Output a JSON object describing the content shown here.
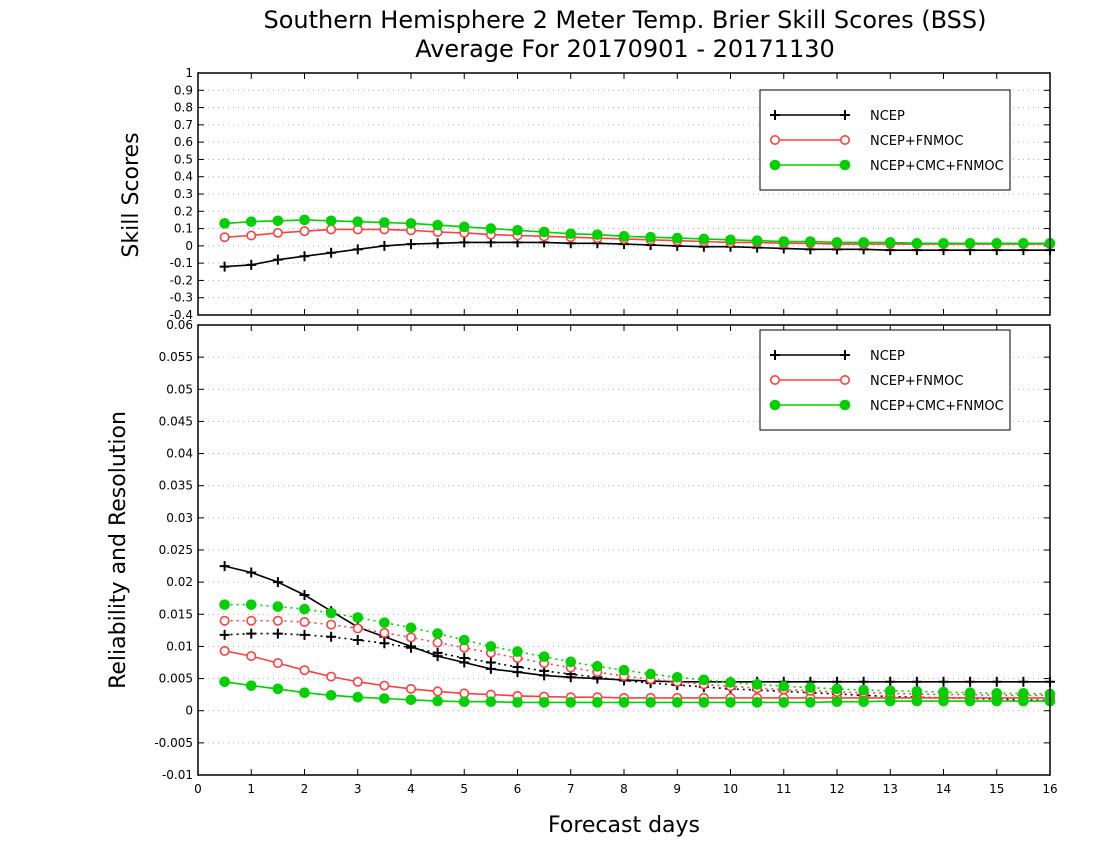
{
  "title": {
    "line1": "Southern Hemisphere 2 Meter Temp. Brier Skill Scores (BSS)",
    "line2": "Average For 20170901 - 20171130"
  },
  "chart_data": [
    {
      "type": "line",
      "panel": "top",
      "ylabel": "Skill Scores",
      "xlabel": "",
      "xlim": [
        0,
        16
      ],
      "ylim": [
        -0.4,
        1
      ],
      "yticks": [
        -0.4,
        -0.3,
        -0.2,
        -0.1,
        0,
        0.1,
        0.2,
        0.3,
        0.4,
        0.5,
        0.6,
        0.7,
        0.8,
        0.9,
        1
      ],
      "ytick_labels": [
        "-0.4",
        "-0.3",
        "-0.2",
        "-0.1",
        "0",
        "0.1",
        "0.2",
        "0.3",
        "0.4",
        "0.5",
        "0.6",
        "0.7",
        "0.8",
        "0.9",
        "1"
      ],
      "grid": true,
      "legend_position": "top-right",
      "x": [
        0.5,
        1,
        1.5,
        2,
        2.5,
        3,
        3.5,
        4,
        4.5,
        5,
        5.5,
        6,
        6.5,
        7,
        7.5,
        8,
        8.5,
        9,
        9.5,
        10,
        10.5,
        11,
        11.5,
        12,
        12.5,
        13,
        13.5,
        14,
        14.5,
        15,
        15.5,
        16
      ],
      "series": [
        {
          "name": "NCEP",
          "color": "#000000",
          "marker": "plus",
          "line": "solid",
          "values": [
            -0.12,
            -0.11,
            -0.08,
            -0.06,
            -0.04,
            -0.02,
            0.0,
            0.01,
            0.015,
            0.02,
            0.02,
            0.02,
            0.02,
            0.015,
            0.015,
            0.01,
            0.005,
            0.0,
            -0.005,
            -0.005,
            -0.01,
            -0.015,
            -0.02,
            -0.02,
            -0.02,
            -0.025,
            -0.025,
            -0.025,
            -0.025,
            -0.025,
            -0.025,
            -0.025
          ]
        },
        {
          "name": "NCEP+FNMOC",
          "color": "#ff4040",
          "marker": "open-circle",
          "line": "solid",
          "values": [
            0.05,
            0.06,
            0.075,
            0.085,
            0.095,
            0.095,
            0.095,
            0.09,
            0.08,
            0.075,
            0.065,
            0.06,
            0.055,
            0.05,
            0.045,
            0.04,
            0.035,
            0.03,
            0.025,
            0.02,
            0.02,
            0.015,
            0.015,
            0.01,
            0.01,
            0.01,
            0.01,
            0.01,
            0.01,
            0.01,
            0.01,
            0.01
          ]
        },
        {
          "name": "NCEP+CMC+FNMOC",
          "color": "#00d000",
          "marker": "filled-circle",
          "line": "solid",
          "values": [
            0.13,
            0.14,
            0.145,
            0.15,
            0.145,
            0.14,
            0.135,
            0.13,
            0.12,
            0.11,
            0.1,
            0.09,
            0.08,
            0.07,
            0.065,
            0.055,
            0.05,
            0.045,
            0.04,
            0.035,
            0.03,
            0.025,
            0.025,
            0.02,
            0.02,
            0.02,
            0.015,
            0.015,
            0.015,
            0.015,
            0.015,
            0.015
          ]
        }
      ]
    },
    {
      "type": "line",
      "panel": "bottom",
      "ylabel": "Reliability and Resolution",
      "xlabel": "Forecast days",
      "xlim": [
        0,
        16
      ],
      "ylim": [
        -0.01,
        0.06
      ],
      "xticks": [
        0,
        1,
        2,
        3,
        4,
        5,
        6,
        7,
        8,
        9,
        10,
        11,
        12,
        13,
        14,
        15,
        16
      ],
      "xtick_labels": [
        "0",
        "1",
        "2",
        "3",
        "4",
        "5",
        "6",
        "7",
        "8",
        "9",
        "10",
        "11",
        "12",
        "13",
        "14",
        "15",
        "16"
      ],
      "yticks": [
        -0.01,
        -0.005,
        0,
        0.005,
        0.01,
        0.015,
        0.02,
        0.025,
        0.03,
        0.035,
        0.04,
        0.045,
        0.05,
        0.055,
        0.06
      ],
      "ytick_labels": [
        "-0.01",
        "-0.005",
        "0",
        "0.005",
        "0.01",
        "0.015",
        "0.02",
        "0.025",
        "0.03",
        "0.035",
        "0.04",
        "0.045",
        "0.05",
        "0.055",
        "0.06"
      ],
      "grid": true,
      "legend_position": "top-right",
      "x": [
        0.5,
        1,
        1.5,
        2,
        2.5,
        3,
        3.5,
        4,
        4.5,
        5,
        5.5,
        6,
        6.5,
        7,
        7.5,
        8,
        8.5,
        9,
        9.5,
        10,
        10.5,
        11,
        11.5,
        12,
        12.5,
        13,
        13.5,
        14,
        14.5,
        15,
        15.5,
        16
      ],
      "series": [
        {
          "name": "NCEP",
          "color": "#000000",
          "marker": "plus",
          "line": "solid",
          "values": [
            0.0225,
            0.0215,
            0.02,
            0.018,
            0.0155,
            0.013,
            0.0115,
            0.01,
            0.0085,
            0.0075,
            0.0065,
            0.006,
            0.0055,
            0.0052,
            0.005,
            0.0048,
            0.0046,
            0.0045,
            0.0045,
            0.0045,
            0.0045,
            0.0045,
            0.0045,
            0.0045,
            0.0045,
            0.0045,
            0.0045,
            0.0045,
            0.0045,
            0.0045,
            0.0045,
            0.0045
          ]
        },
        {
          "legend": false,
          "color": "#000000",
          "marker": "plus",
          "line": "dotted",
          "values": [
            0.0118,
            0.012,
            0.012,
            0.0118,
            0.0115,
            0.011,
            0.0105,
            0.0098,
            0.009,
            0.0082,
            0.0075,
            0.0068,
            0.0062,
            0.0057,
            0.0052,
            0.0047,
            0.0043,
            0.004,
            0.0037,
            0.0034,
            0.0032,
            0.003,
            0.0028,
            0.0026,
            0.0024,
            0.0022,
            0.0021,
            0.002,
            0.0019,
            0.0018,
            0.0017,
            0.0016
          ]
        },
        {
          "name": "NCEP+FNMOC",
          "color": "#ff4040",
          "marker": "open-circle",
          "line": "solid",
          "values": [
            0.0093,
            0.0085,
            0.0074,
            0.0063,
            0.0053,
            0.0045,
            0.0039,
            0.0034,
            0.003,
            0.0027,
            0.0025,
            0.0023,
            0.0022,
            0.0021,
            0.0021,
            0.002,
            0.002,
            0.002,
            0.002,
            0.002,
            0.002,
            0.002,
            0.002,
            0.002,
            0.002,
            0.002,
            0.002,
            0.002,
            0.002,
            0.002,
            0.002,
            0.002
          ]
        },
        {
          "legend": false,
          "color": "#ff4040",
          "marker": "open-circle",
          "line": "dotted",
          "values": [
            0.014,
            0.014,
            0.014,
            0.0138,
            0.0134,
            0.0128,
            0.0121,
            0.0114,
            0.0106,
            0.0098,
            0.009,
            0.0082,
            0.0074,
            0.0067,
            0.006,
            0.0054,
            0.0049,
            0.0045,
            0.0041,
            0.0038,
            0.0035,
            0.0033,
            0.0031,
            0.0029,
            0.0028,
            0.0027,
            0.0026,
            0.0025,
            0.0025,
            0.0024,
            0.0024,
            0.0024
          ]
        },
        {
          "name": "NCEP+CMC+FNMOC",
          "color": "#00d000",
          "marker": "filled-circle",
          "line": "solid",
          "values": [
            0.0045,
            0.0039,
            0.0034,
            0.0028,
            0.0024,
            0.0021,
            0.0019,
            0.0017,
            0.0015,
            0.0014,
            0.0014,
            0.0013,
            0.0013,
            0.0013,
            0.0013,
            0.0013,
            0.0013,
            0.0013,
            0.0013,
            0.0013,
            0.0013,
            0.0013,
            0.0013,
            0.0014,
            0.0014,
            0.0015,
            0.0015,
            0.0015,
            0.0015,
            0.0015,
            0.0015,
            0.0015
          ]
        },
        {
          "legend": false,
          "color": "#00d000",
          "marker": "filled-circle",
          "line": "dotted",
          "values": [
            0.0165,
            0.0165,
            0.0162,
            0.0158,
            0.0152,
            0.0145,
            0.0137,
            0.0129,
            0.012,
            0.011,
            0.01,
            0.0092,
            0.0084,
            0.0076,
            0.0069,
            0.0063,
            0.0057,
            0.0052,
            0.0048,
            0.0044,
            0.0041,
            0.0038,
            0.0036,
            0.0034,
            0.0032,
            0.0031,
            0.003,
            0.0029,
            0.0028,
            0.0027,
            0.0027,
            0.0026
          ]
        }
      ]
    }
  ]
}
